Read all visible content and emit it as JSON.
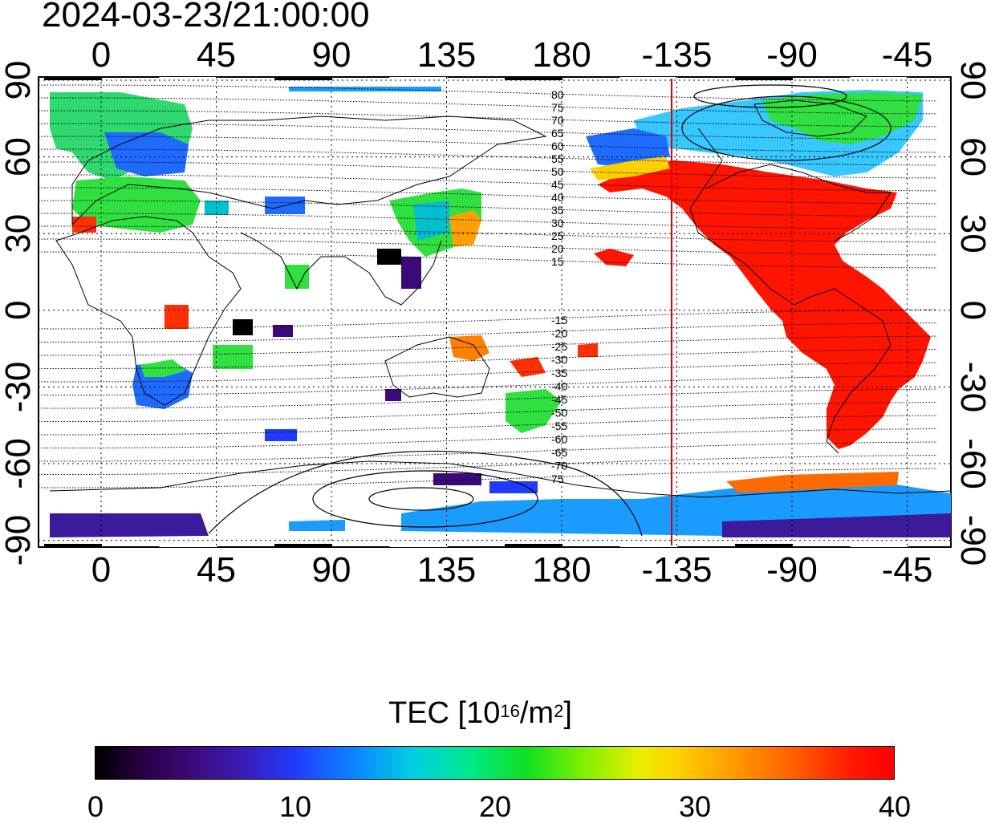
{
  "timestamp": "2024-03-23/21:00:00",
  "map": {
    "top_longitude_ticks": [
      "0",
      "45",
      "90",
      "135",
      "180",
      "-135",
      "-90",
      "-45"
    ],
    "bottom_longitude_ticks": [
      "0",
      "45",
      "90",
      "135",
      "180",
      "-135",
      "-90",
      "-45"
    ],
    "left_latitude_ticks": [
      "90",
      "60",
      "30",
      "0",
      "-30",
      "-60",
      "-90"
    ],
    "right_latitude_ticks": [
      "90",
      "60",
      "30",
      "0",
      "-30",
      "-60",
      "-90"
    ],
    "contour_labels_north": [
      "80",
      "75",
      "70",
      "65",
      "60",
      "55",
      "50",
      "45",
      "40",
      "35",
      "30",
      "25",
      "20",
      "15"
    ],
    "contour_labels_south": [
      "-15",
      "-20",
      "-25",
      "-30",
      "-35",
      "-40",
      "-45",
      "-50",
      "-55",
      "-60",
      "-65",
      "-70",
      "75"
    ],
    "terminator_marker_color": "#e00000"
  },
  "colorbar": {
    "title_main": "TEC  [10",
    "title_sup1": "16",
    "title_mid": "/m",
    "title_sup2": "2",
    "title_end": "]",
    "min_label": "0",
    "labels": [
      "0",
      "10",
      "20",
      "30",
      "40"
    ],
    "colors": [
      "#000000",
      "#3b0a7a",
      "#1f3bff",
      "#00d0e0",
      "#10e020",
      "#e8f000",
      "#ff9a00",
      "#ff0000"
    ]
  }
}
